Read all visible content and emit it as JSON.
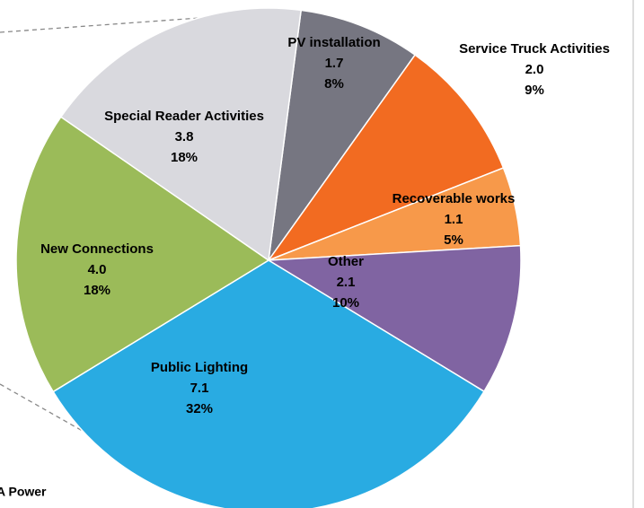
{
  "chart_data": {
    "type": "pie",
    "categories": [
      "PV installation",
      "Service Truck Activities",
      "Recoverable works",
      "Other",
      "Public Lighting",
      "New Connections",
      "Special Reader Activities"
    ],
    "values": [
      1.7,
      2.0,
      1.1,
      2.1,
      7.1,
      4.0,
      3.8
    ],
    "value_labels": [
      "1.7",
      "2.0",
      "1.1",
      "2.1",
      "7.1",
      "4.0",
      "3.8"
    ],
    "shares": [
      8,
      9,
      5,
      10,
      32,
      18,
      18
    ],
    "share_labels": [
      "8%",
      "9%",
      "5%",
      "10%",
      "32%",
      "18%",
      "18%"
    ],
    "colors": [
      "#767681",
      "#f26b21",
      "#f7994a",
      "#8064a2",
      "#29abe2",
      "#9bbb59",
      "#d9d9de"
    ],
    "annotation": "A Power"
  }
}
